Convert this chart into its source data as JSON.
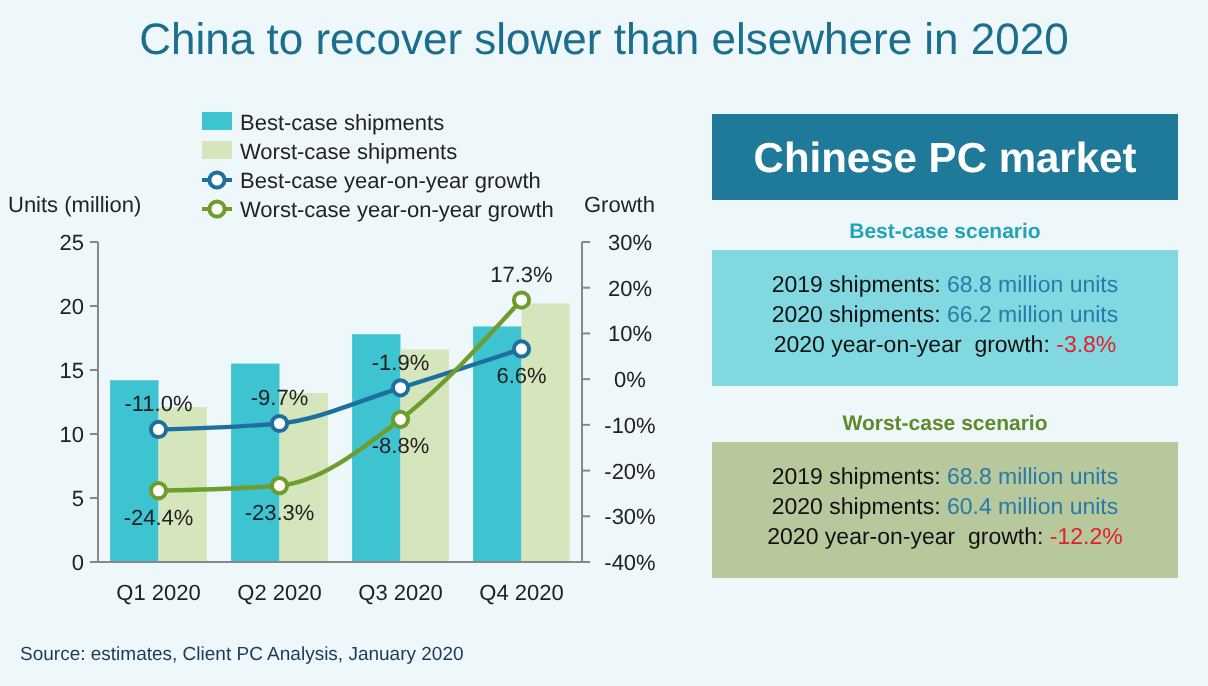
{
  "chart_data": [
    {
      "type": "bar",
      "title": "China to recover slower than elsewhere in 2020",
      "ylabel": "Units (million)",
      "y2label": "Growth",
      "categories": [
        "Q1 2020",
        "Q2 2020",
        "Q3 2020",
        "Q4 2020"
      ],
      "series": [
        {
          "name": "Best-case shipments",
          "type": "bar",
          "color": "#3ec3d0",
          "values": [
            14.2,
            15.5,
            17.8,
            18.4
          ]
        },
        {
          "name": "Worst-case shipments",
          "type": "bar",
          "color": "#d5e6bd",
          "values": [
            12.1,
            13.2,
            16.6,
            20.2
          ]
        },
        {
          "name": "Best-case year-on-year growth",
          "type": "line",
          "axis": "y2",
          "color": "#1e6fa0",
          "values": [
            -11.0,
            -9.7,
            -1.9,
            6.6
          ],
          "value_labels": [
            "-11.0%",
            "-9.7%",
            "-1.9%",
            "6.6%"
          ]
        },
        {
          "name": "Worst-case year-on-year growth",
          "type": "line",
          "axis": "y2",
          "color": "#6e9d2c",
          "values": [
            -24.4,
            -23.3,
            -8.8,
            17.3
          ],
          "value_labels": [
            "-24.4%",
            "-23.3%",
            "-8.8%",
            "17.3%"
          ]
        }
      ],
      "ylim": [
        0,
        25
      ],
      "yticks": [
        0,
        5,
        10,
        15,
        20,
        25
      ],
      "y2lim": [
        -40,
        30
      ],
      "y2ticks": [
        {
          "value": -40,
          "label": "-40%"
        },
        {
          "value": -30,
          "label": "-30%"
        },
        {
          "value": -20,
          "label": "-20%"
        },
        {
          "value": -10,
          "label": "-10%"
        },
        {
          "value": 0,
          "label": "0%"
        },
        {
          "value": 10,
          "label": "10%"
        },
        {
          "value": 20,
          "label": "20%"
        },
        {
          "value": 30,
          "label": "30%"
        }
      ],
      "marker": "circle",
      "legend": "top",
      "grid": false,
      "annotations": [
        "Source: estimates, Client PC Analysis, January 2020"
      ]
    },
    {
      "type": "other",
      "title": "Chinese PC market",
      "annotations": [
        "Best-case scenario",
        "2019 shipments: 68.8 million units",
        "2020 shipments: 66.2 million units",
        "2020 year-on-year  growth: -3.8%",
        "Worst-case scenario",
        "2019 shipments: 68.8 million units",
        "2020 shipments: 60.4 million units",
        "2020 year-on-year  growth: -12.2%"
      ]
    }
  ]
}
